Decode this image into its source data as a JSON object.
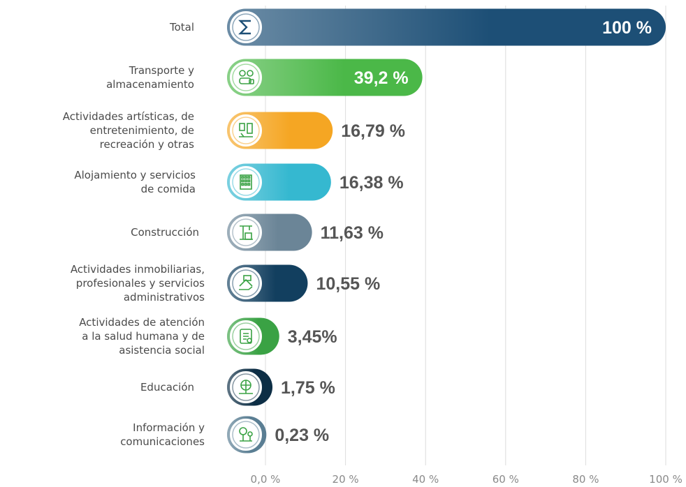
{
  "chart_data": {
    "type": "bar",
    "orientation": "horizontal",
    "categories": [
      [
        "Total"
      ],
      [
        "Transporte y",
        "almacenamiento"
      ],
      [
        "Actividades artísticas, de",
        "entretenimiento, de",
        "recreación y otras"
      ],
      [
        "Alojamiento y servicios",
        "de comida"
      ],
      [
        "Construcción"
      ],
      [
        "Actividades inmobiliarias,",
        "profesionales y servicios",
        "administrativos"
      ],
      [
        "Actividades de atención",
        "a la salud humana y de",
        "asistencia social"
      ],
      [
        "Educación"
      ],
      [
        "Información y",
        "comunicaciones"
      ]
    ],
    "values": [
      100,
      39.2,
      16.79,
      16.38,
      11.63,
      10.55,
      3.45,
      1.75,
      0.23
    ],
    "value_labels": [
      "100 %",
      "39,2 %",
      "16,79 %",
      "16,38 %",
      "11,63 %",
      "10,55 %",
      "3,45%",
      "1,75 %",
      "0,23 %"
    ],
    "bar_colors": [
      "#1d4f76",
      "#4bb848",
      "#f5a623",
      "#35b8d0",
      "#6b8597",
      "#123f5f",
      "#3aa244",
      "#0d2e45",
      "#5a7e93"
    ],
    "icons": [
      "sigma-icon",
      "transport-icon",
      "arts-icon",
      "hotel-icon",
      "construction-icon",
      "real-estate-icon",
      "health-icon",
      "education-icon",
      "information-icon"
    ],
    "xlim": [
      0,
      100
    ],
    "x_ticks": [
      "0,0 %",
      "20 %",
      "40 %",
      "60 %",
      "80 %",
      "100 %"
    ],
    "grid": true,
    "xlabel": "",
    "ylabel": "",
    "title": ""
  }
}
